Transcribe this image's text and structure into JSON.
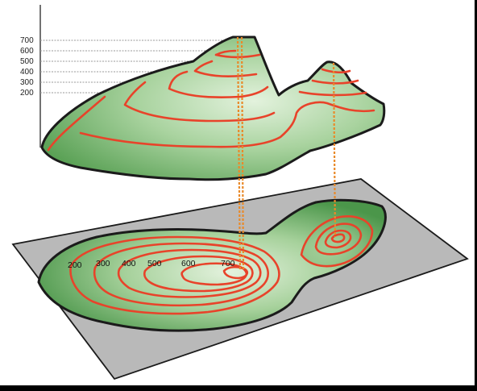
{
  "elevation_axis": {
    "labels": [
      "700",
      "600",
      "500",
      "400",
      "300",
      "200"
    ]
  },
  "map_labels": [
    "200",
    "300",
    "400",
    "500",
    "600",
    "700"
  ],
  "colors": {
    "terrain_fill": "#6fae6a",
    "terrain_highlight": "#dcefd6",
    "contour_line": "#e8432a",
    "outline": "#1b1b1b",
    "paper": "#b9b9b9",
    "projection_line": "#e98a2a"
  }
}
